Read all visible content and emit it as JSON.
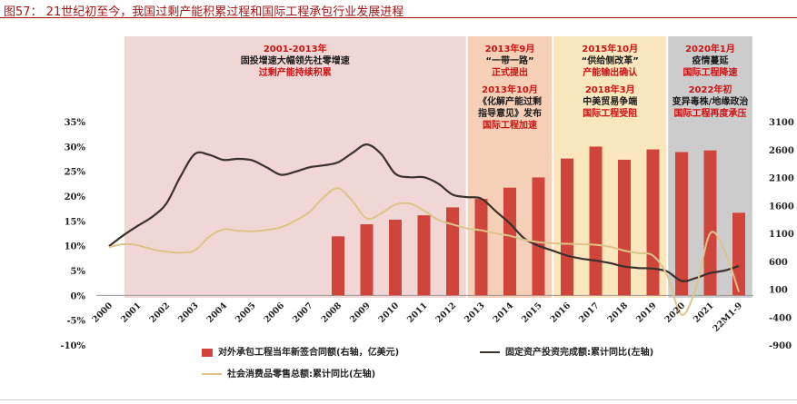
{
  "title": "图57：  21世纪初至今，我国过剩产能积累过程和国际工程承包行业发展进程",
  "annotations": [
    {
      "lines": [
        {
          "t": "2001-2013年",
          "c": "red"
        },
        {
          "t": "固投增速大幅领先社零增速",
          "c": "blk"
        },
        {
          "t": "过剩产能持续积累",
          "c": "red"
        }
      ]
    },
    {
      "lines": [
        {
          "t": "2013年9月",
          "c": "red"
        },
        {
          "t": "“一带一路”",
          "c": "blk"
        },
        {
          "t": "正式提出",
          "c": "red"
        },
        {
          "t": "",
          "c": "gap"
        },
        {
          "t": "2013年10月",
          "c": "red"
        },
        {
          "t": "《化解产能过剩",
          "c": "blk"
        },
        {
          "t": "指导意见》发布",
          "c": "blk"
        },
        {
          "t": "国际工程加速",
          "c": "red"
        }
      ]
    },
    {
      "lines": [
        {
          "t": "2015年10月",
          "c": "red"
        },
        {
          "t": "“供给侧改革”",
          "c": "blk"
        },
        {
          "t": "产能输出确认",
          "c": "red"
        },
        {
          "t": "",
          "c": "gap"
        },
        {
          "t": "2018年3月",
          "c": "red"
        },
        {
          "t": "中美贸易争端",
          "c": "blk"
        },
        {
          "t": "国际工程受阻",
          "c": "red"
        }
      ]
    },
    {
      "lines": [
        {
          "t": "2020年1月",
          "c": "red"
        },
        {
          "t": "疫情蔓延",
          "c": "blk"
        },
        {
          "t": "国际工程降速",
          "c": "red"
        },
        {
          "t": "",
          "c": "gap"
        },
        {
          "t": "2022年初",
          "c": "red"
        },
        {
          "t": "变异毒株/地缘政治",
          "c": "blk"
        },
        {
          "t": "国际工程再度承压",
          "c": "red"
        }
      ]
    }
  ],
  "legend": {
    "bar": "对外承包工程当年新签合同额(右轴，亿美元)",
    "fai": "固定资产投资完成额:累计同比(左轴)",
    "retail": "社会消费品零售总额:累计同比(左轴)"
  },
  "colors": {
    "bar": "#d0453b",
    "fai": "#3a302c",
    "retail": "#dcc48a",
    "shade1": "#f0d7d5",
    "shade2": "#f6cfb7",
    "shade3": "#fbe7bd",
    "shade4": "#cccccc",
    "title": "#a31515"
  },
  "chart_data": {
    "type": "bar+line",
    "categories": [
      "2000",
      "2001",
      "2002",
      "2003",
      "2004",
      "2005",
      "2006",
      "2007",
      "2008",
      "2009",
      "2010",
      "2011",
      "2012",
      "2013",
      "2014",
      "2015",
      "2016",
      "2017",
      "2018",
      "2019",
      "2020",
      "2021",
      "22M1-9"
    ],
    "left_axis": {
      "ylim": [
        -10,
        35
      ],
      "ticks": [
        "-10%",
        "-5%",
        "0%",
        "5%",
        "10%",
        "15%",
        "20%",
        "25%",
        "30%",
        "35%"
      ]
    },
    "right_axis": {
      "ylim": [
        -900,
        3100
      ],
      "ticks": [
        "-900",
        "-400",
        "100",
        "600",
        "1100",
        "1600",
        "2100",
        "2600",
        "3100"
      ]
    },
    "series": [
      {
        "name": "对外承包工程当年新签合同额(右轴，亿美元)",
        "kind": "bar",
        "axis": "right",
        "values": [
          null,
          null,
          null,
          null,
          null,
          null,
          null,
          null,
          1046,
          1262,
          1344,
          1423,
          1565,
          1716,
          1918,
          2101,
          2440,
          2653,
          2418,
          2603,
          2555,
          2585,
          1468
        ]
      },
      {
        "name": "固定资产投资完成额:累计同比(左轴)",
        "kind": "line",
        "axis": "left",
        "x": [
          0,
          0.5,
          1,
          1.5,
          2,
          2.5,
          3,
          3.5,
          4,
          4.5,
          5,
          5.5,
          6,
          6.5,
          7,
          7.5,
          8,
          8.5,
          9,
          9.5,
          10,
          10.5,
          11,
          11.5,
          12,
          12.5,
          13,
          13.5,
          14,
          14.5,
          15,
          15.5,
          16,
          16.5,
          17,
          17.5,
          18,
          18.5,
          19,
          19.5,
          20,
          20.5,
          21,
          21.5,
          22
        ],
        "y": [
          9.9,
          12.1,
          14.0,
          15.8,
          18.5,
          24.0,
          28.5,
          28.3,
          27.3,
          27.5,
          27.2,
          25.8,
          24.3,
          24.9,
          25.8,
          26.2,
          26.8,
          28.7,
          30.4,
          28.5,
          24.5,
          23.8,
          23.8,
          22.5,
          20.3,
          19.8,
          19.5,
          17.0,
          14.5,
          11.5,
          10.0,
          9.0,
          8.0,
          7.4,
          7.0,
          6.5,
          5.8,
          5.5,
          5.4,
          4.8,
          2.9,
          3.5,
          4.5,
          5.0,
          5.9
        ]
      },
      {
        "name": "社会消费品零售总额:累计同比(左轴)",
        "kind": "line",
        "axis": "left",
        "x": [
          0,
          0.5,
          1,
          1.5,
          2,
          2.5,
          3,
          3.5,
          4,
          4.5,
          5,
          5.5,
          6,
          6.5,
          7,
          7.5,
          8,
          8.5,
          9,
          9.5,
          10,
          10.5,
          11,
          11.5,
          12,
          12.5,
          13,
          13.5,
          14,
          14.5,
          15,
          15.5,
          16,
          16.5,
          17,
          17.5,
          18,
          18.5,
          19,
          19.5,
          20,
          20.5,
          21,
          21.5,
          22
        ],
        "y": [
          9.7,
          10.3,
          10.1,
          9.3,
          8.8,
          8.6,
          9.1,
          11.8,
          13.3,
          13.0,
          12.9,
          13.2,
          13.7,
          15.0,
          16.8,
          19.8,
          21.6,
          19.0,
          15.5,
          16.5,
          18.3,
          18.5,
          17.1,
          15.2,
          14.3,
          13.5,
          13.1,
          12.5,
          12.0,
          11.2,
          10.7,
          10.5,
          10.4,
          10.3,
          10.2,
          9.8,
          9.0,
          8.5,
          8.0,
          4.0,
          -3.9,
          1.5,
          12.5,
          9.0,
          0.7
        ]
      }
    ],
    "shaded_periods": [
      {
        "from": "2001",
        "to": "2012"
      },
      {
        "from": "2013",
        "to": "2015"
      },
      {
        "from": "2016",
        "to": "2019"
      },
      {
        "from": "2020",
        "to": "22M1-9"
      }
    ]
  }
}
